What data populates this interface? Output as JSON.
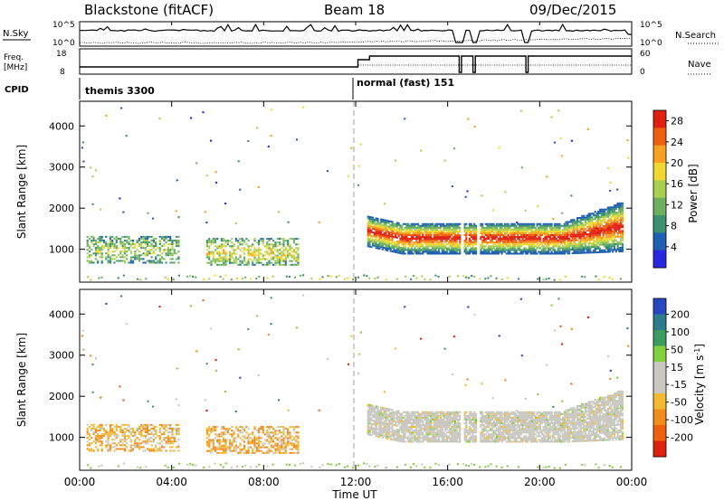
{
  "header": {
    "station": "Blackstone (fitACF)",
    "beam": "Beam 18",
    "date": "09/Dec/2015"
  },
  "left_labels": {
    "nsky": "N.Sky",
    "freq_line1": "Freq.",
    "freq_line2": "[MHz]",
    "cpid": "CPID"
  },
  "right_labels": {
    "nsearch": "N.Search",
    "nave": "Nave"
  },
  "noise_axis": {
    "top": "10^5",
    "bottom": "10^0"
  },
  "freq_axis": {
    "top": "18",
    "bottom": "8"
  },
  "nave_axis": {
    "top": "60",
    "bottom": "0"
  },
  "cpid_labels": [
    "themis 3300",
    "normal (fast) 151"
  ],
  "colors": {
    "power_scale": [
      "#2828e0",
      "#2060b0",
      "#3c9070",
      "#6cb060",
      "#a8d050",
      "#f0d830",
      "#f8a020",
      "#f06010",
      "#e02010"
    ],
    "velocity_scale": [
      "#e02010",
      "#f06010",
      "#f08c1c",
      "#f4b830",
      "#c8c8c0",
      "#c8c8c0",
      "#80d040",
      "#3c9c60",
      "#2c7c8c",
      "#2848c0"
    ]
  },
  "chart_data": [
    {
      "type": "heatmap",
      "name": "power",
      "ylabel": "Slant Range [km]",
      "xlabel": "",
      "x_ticks": [
        "00:00",
        "04:00",
        "08:00",
        "12:00",
        "16:00",
        "20:00",
        "00:00"
      ],
      "xlim": [
        0,
        24
      ],
      "y_ticks": [
        1000,
        2000,
        3000,
        4000
      ],
      "ylim": [
        200,
        4600
      ],
      "colorbar_label": "Power [dB]",
      "colorbar_ticks": [
        4,
        8,
        12,
        16,
        20,
        24,
        28
      ],
      "colorbar_range": [
        0,
        30
      ],
      "cpid_change_hour": 12.1,
      "echo_bands": [
        {
          "t0": 0.3,
          "t1": 4.3,
          "r0": 650,
          "r1": 1300,
          "core": 0.45
        },
        {
          "t0": 5.5,
          "t1": 9.5,
          "r0": 600,
          "r1": 1250,
          "core": 0.55
        },
        {
          "t0": 12.4,
          "t1": 23.8,
          "r0": 900,
          "r1": 2100,
          "core": 0.85
        }
      ]
    },
    {
      "type": "heatmap",
      "name": "velocity",
      "ylabel": "Slant Range [km]",
      "xlabel": "Time UT",
      "x_ticks": [
        "00:00",
        "04:00",
        "08:00",
        "12:00",
        "16:00",
        "20:00",
        "00:00"
      ],
      "xlim": [
        0,
        24
      ],
      "y_ticks": [
        1000,
        2000,
        3000,
        4000
      ],
      "ylim": [
        200,
        4600
      ],
      "colorbar_label": "Velocity [m s^-1]",
      "colorbar_ticks": [
        200,
        100,
        50,
        15,
        -15,
        -50,
        -100,
        -200
      ],
      "colorbar_range": [
        -250,
        250
      ],
      "cpid_change_hour": 12.1
    }
  ]
}
